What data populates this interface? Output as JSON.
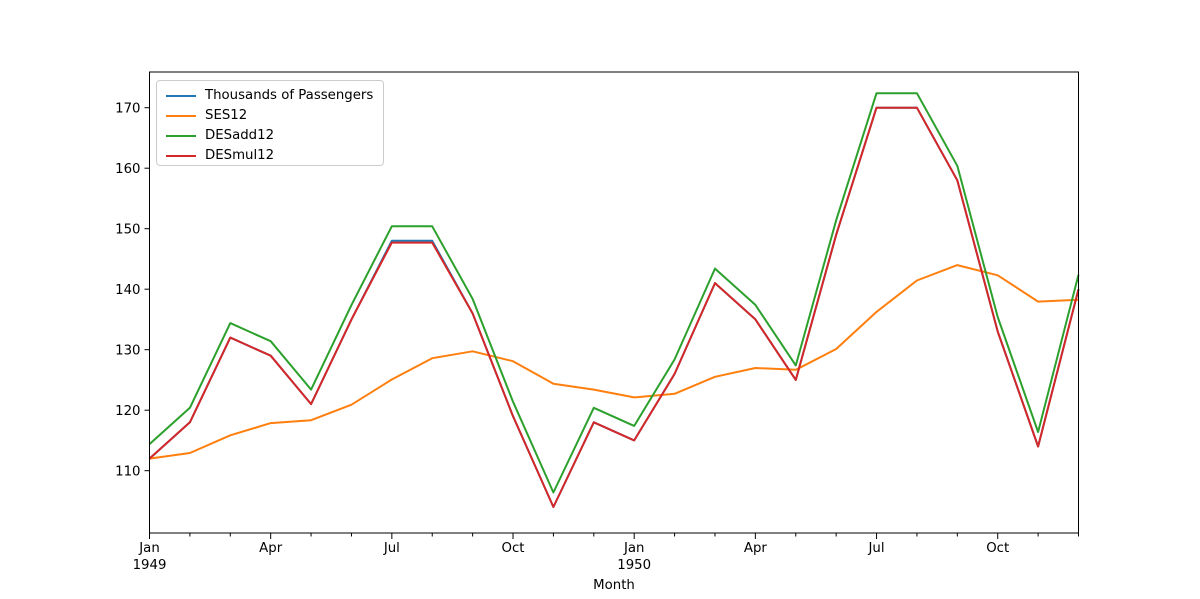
{
  "chart_data": {
    "type": "line",
    "title": "",
    "xlabel": "Month",
    "ylabel": "",
    "grid": false,
    "legend_position": "upper left",
    "categories": [
      "Jan 1949",
      "Feb 1949",
      "Mar 1949",
      "Apr 1949",
      "May 1949",
      "Jun 1949",
      "Jul 1949",
      "Aug 1949",
      "Sep 1949",
      "Oct 1949",
      "Nov 1949",
      "Dec 1949",
      "Jan 1950",
      "Feb 1950",
      "Mar 1950",
      "Apr 1950",
      "May 1950",
      "Jun 1950",
      "Jul 1950",
      "Aug 1950",
      "Sep 1950",
      "Oct 1950",
      "Nov 1950",
      "Dec 1950"
    ],
    "series": [
      {
        "name": "Thousands of Passengers",
        "color": "#1f77b4",
        "values": [
          112,
          118,
          132,
          129,
          121,
          135,
          148,
          148,
          136,
          119,
          104,
          118,
          115,
          126,
          141,
          135,
          125,
          149,
          170,
          170,
          158,
          133,
          114,
          140
        ]
      },
      {
        "name": "SES12",
        "color": "#ff7f0e",
        "values": [
          112.0,
          112.92,
          115.85,
          117.87,
          118.35,
          120.91,
          125.08,
          128.6,
          129.74,
          128.09,
          124.38,
          123.4,
          122.11,
          122.71,
          125.52,
          126.98,
          126.68,
          130.11,
          136.25,
          141.44,
          143.99,
          142.3,
          137.95,
          138.26
        ]
      },
      {
        "name": "DESadd12",
        "color": "#2ca02c",
        "values": [
          114.4,
          120.4,
          134.4,
          131.4,
          123.4,
          137.4,
          150.4,
          150.4,
          138.4,
          121.4,
          106.4,
          120.4,
          117.4,
          128.4,
          143.4,
          137.4,
          127.4,
          151.4,
          172.4,
          172.4,
          160.4,
          135.4,
          116.4,
          142.4
        ]
      },
      {
        "name": "DESmul12",
        "color": "#d62728",
        "values": [
          112,
          118,
          132,
          129,
          121,
          135,
          147.7,
          147.7,
          136,
          119,
          104,
          118,
          115,
          126,
          141,
          135,
          125,
          149,
          170,
          170,
          158,
          133,
          114,
          140
        ]
      }
    ],
    "ylim": [
      99.7,
      175.9
    ],
    "yticks": [
      110,
      120,
      130,
      140,
      150,
      160,
      170
    ],
    "xlim_months": [
      0,
      23
    ],
    "xticks": [
      {
        "m": 0,
        "label": "Jan",
        "year": "1949"
      },
      {
        "m": 3,
        "label": "Apr"
      },
      {
        "m": 6,
        "label": "Jul"
      },
      {
        "m": 9,
        "label": "Oct"
      },
      {
        "m": 12,
        "label": "Jan",
        "year": "1950"
      },
      {
        "m": 15,
        "label": "Apr"
      },
      {
        "m": 18,
        "label": "Jul"
      },
      {
        "m": 21,
        "label": "Oct"
      }
    ]
  }
}
